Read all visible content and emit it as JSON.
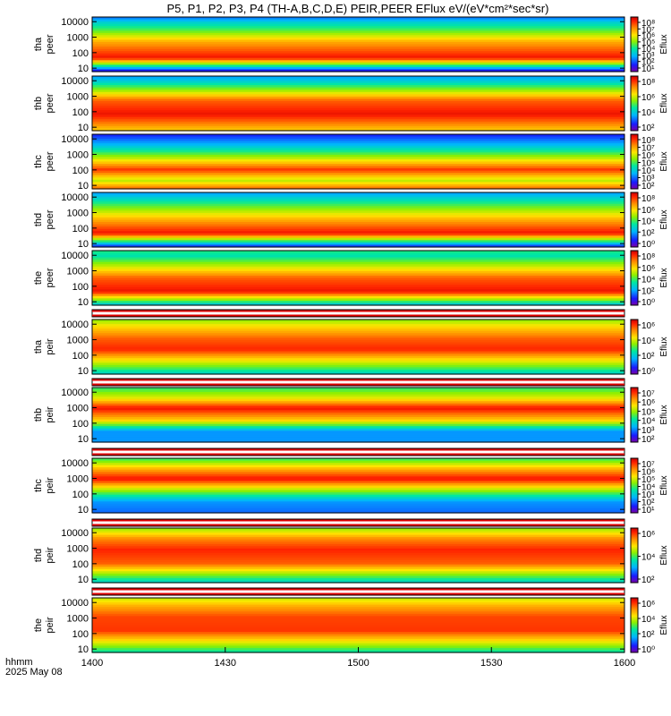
{
  "title": "P5, P1, P2, P3, P4 (TH-A,B,C,D,E) PEIR,PEER EFlux eV/(eV*cm²*sec*sr)",
  "colorbar_label": "Eflux",
  "chart_data": {
    "type": "heatmap",
    "x_axis": {
      "label": "hhmm",
      "date_label": "2025 May 08",
      "range": [
        1400,
        1600
      ],
      "ticks": [
        "1400",
        "1430",
        "1500",
        "1530",
        "1600"
      ]
    },
    "y_scale": "log",
    "y_range": [
      6,
      20000
    ],
    "y_ticks": [
      "10",
      "100",
      "1000",
      "10000"
    ],
    "panels": [
      {
        "probe": "tha",
        "species": "peer",
        "cbar_ticks": [
          "10¹",
          "10²",
          "10³",
          "10⁴",
          "10⁵",
          "10⁶",
          "10⁷",
          "10⁸"
        ]
      },
      {
        "probe": "thb",
        "species": "peer",
        "cbar_ticks": [
          "10²",
          "10⁴",
          "10⁶",
          "10⁸"
        ]
      },
      {
        "probe": "thc",
        "species": "peer",
        "cbar_ticks": [
          "10²",
          "10³",
          "10⁴",
          "10⁵",
          "10⁶",
          "10⁷",
          "10⁸"
        ]
      },
      {
        "probe": "thd",
        "species": "peer",
        "cbar_ticks": [
          "10⁰",
          "10²",
          "10⁴",
          "10⁶",
          "10⁸"
        ]
      },
      {
        "probe": "the",
        "species": "peer",
        "cbar_ticks": [
          "10⁰",
          "10²",
          "10⁴",
          "10⁶",
          "10⁸"
        ]
      },
      {
        "probe": "tha",
        "species": "peir",
        "cbar_ticks": [
          "10⁰",
          "10²",
          "10⁴",
          "10⁶"
        ]
      },
      {
        "probe": "thb",
        "species": "peir",
        "cbar_ticks": [
          "10²",
          "10³",
          "10⁴",
          "10⁵",
          "10⁶",
          "10⁷"
        ]
      },
      {
        "probe": "thc",
        "species": "peir",
        "cbar_ticks": [
          "10¹",
          "10²",
          "10³",
          "10⁴",
          "10⁵",
          "10⁶",
          "10⁷"
        ]
      },
      {
        "probe": "thd",
        "species": "peir",
        "cbar_ticks": [
          "10²",
          "10⁴",
          "10⁶"
        ]
      },
      {
        "probe": "the",
        "species": "peir",
        "cbar_ticks": [
          "10⁰",
          "10²",
          "10⁴",
          "10⁶"
        ]
      }
    ]
  }
}
